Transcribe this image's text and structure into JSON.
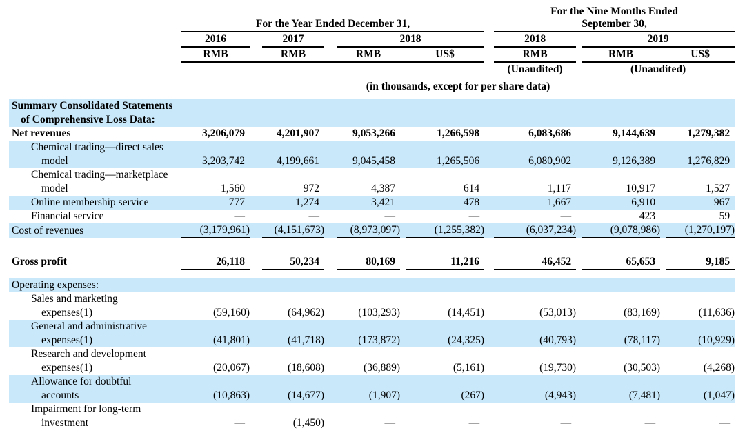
{
  "header": {
    "year_group_title": "For the Year Ended December 31,",
    "nine_group_title_line1": "For the Nine Months Ended",
    "nine_group_title_line2": "September 30,",
    "years": [
      "2016",
      "2017",
      "2018",
      "2018",
      "2019"
    ],
    "currencies": [
      "RMB",
      "RMB",
      "RMB",
      "US$",
      "RMB",
      "RMB",
      "US$"
    ],
    "unaudited_label": "(Unaudited)",
    "note": "(in thousands, except for per share data)"
  },
  "colors": {
    "stripe_blue": "#c9e8fa",
    "text": "#000000",
    "dash": "#4a4a4a"
  },
  "rows": [
    {
      "bg": "blue",
      "bold": true,
      "indent": 0,
      "lines": [
        "Summary Consolidated Statements",
        "of Comprehensive Loss Data:"
      ],
      "values": null
    },
    {
      "bg": "white",
      "bold": true,
      "indent": 0,
      "lines": [
        "Net revenues"
      ],
      "values": [
        "3,206,079",
        "4,201,907",
        "9,053,266",
        "1,266,598",
        "6,083,686",
        "9,144,639",
        "1,279,382"
      ]
    },
    {
      "bg": "blue",
      "indent": 1,
      "lines": [
        "Chemical trading—direct sales",
        "model"
      ],
      "values": [
        "3,203,742",
        "4,199,661",
        "9,045,458",
        "1,265,506",
        "6,080,902",
        "9,126,389",
        "1,276,829"
      ]
    },
    {
      "bg": "white",
      "indent": 1,
      "lines": [
        "Chemical trading—marketplace",
        "model"
      ],
      "values": [
        "1,560",
        "972",
        "4,387",
        "614",
        "1,117",
        "10,917",
        "1,527"
      ]
    },
    {
      "bg": "blue",
      "indent": 1,
      "lines": [
        "Online membership service"
      ],
      "values": [
        "777",
        "1,274",
        "3,421",
        "478",
        "1,667",
        "6,910",
        "967"
      ]
    },
    {
      "bg": "white",
      "indent": 1,
      "lines": [
        "Financial service"
      ],
      "values": [
        "—",
        "—",
        "—",
        "—",
        "—",
        "423",
        "59"
      ]
    },
    {
      "bg": "blue",
      "indent": 0,
      "underline": true,
      "lines": [
        "Cost of revenues"
      ],
      "values": [
        "(3,179,961)",
        "(4,151,673)",
        "(8,973,097)",
        "(1,255,382)",
        "(6,037,234)",
        "(9,078,986)",
        "(1,270,197)"
      ]
    },
    {
      "spacer": true,
      "h": 12
    },
    {
      "bg": "white",
      "bold": true,
      "indent": 0,
      "underline": true,
      "tall": true,
      "lines": [
        "Gross profit"
      ],
      "values": [
        "26,118",
        "50,234",
        "80,169",
        "11,216",
        "46,452",
        "65,653",
        "9,185"
      ]
    },
    {
      "spacer": true,
      "h": 14
    },
    {
      "bg": "blue",
      "indent": 0,
      "lines": [
        "Operating expenses:"
      ],
      "values": null
    },
    {
      "bg": "white",
      "indent": 1,
      "lines": [
        "Sales and marketing",
        "expenses(1)"
      ],
      "values": [
        "(59,160)",
        "(64,962)",
        "(103,293)",
        "(14,451)",
        "(53,013)",
        "(83,169)",
        "(11,636)"
      ]
    },
    {
      "bg": "blue",
      "indent": 1,
      "lines": [
        "General and administrative",
        "expenses(1)"
      ],
      "values": [
        "(41,801)",
        "(41,718)",
        "(173,872)",
        "(24,325)",
        "(40,793)",
        "(78,117)",
        "(10,929)"
      ]
    },
    {
      "bg": "white",
      "indent": 1,
      "lines": [
        "Research and development",
        "expenses(1)"
      ],
      "values": [
        "(20,067)",
        "(18,608)",
        "(36,889)",
        "(5,161)",
        "(19,730)",
        "(30,503)",
        "(4,268)"
      ]
    },
    {
      "bg": "blue",
      "indent": 1,
      "lines": [
        "Allowance for doubtful",
        "accounts"
      ],
      "values": [
        "(10,863)",
        "(14,677)",
        "(1,907)",
        "(267)",
        "(4,943)",
        "(7,481)",
        "(1,047)"
      ]
    },
    {
      "bg": "white",
      "indent": 1,
      "underline": true,
      "padb": true,
      "lines": [
        "Impairment for long-term",
        "investment"
      ],
      "values": [
        "—",
        "(1,450)",
        "—",
        "—",
        "—",
        "—",
        "—"
      ]
    }
  ]
}
